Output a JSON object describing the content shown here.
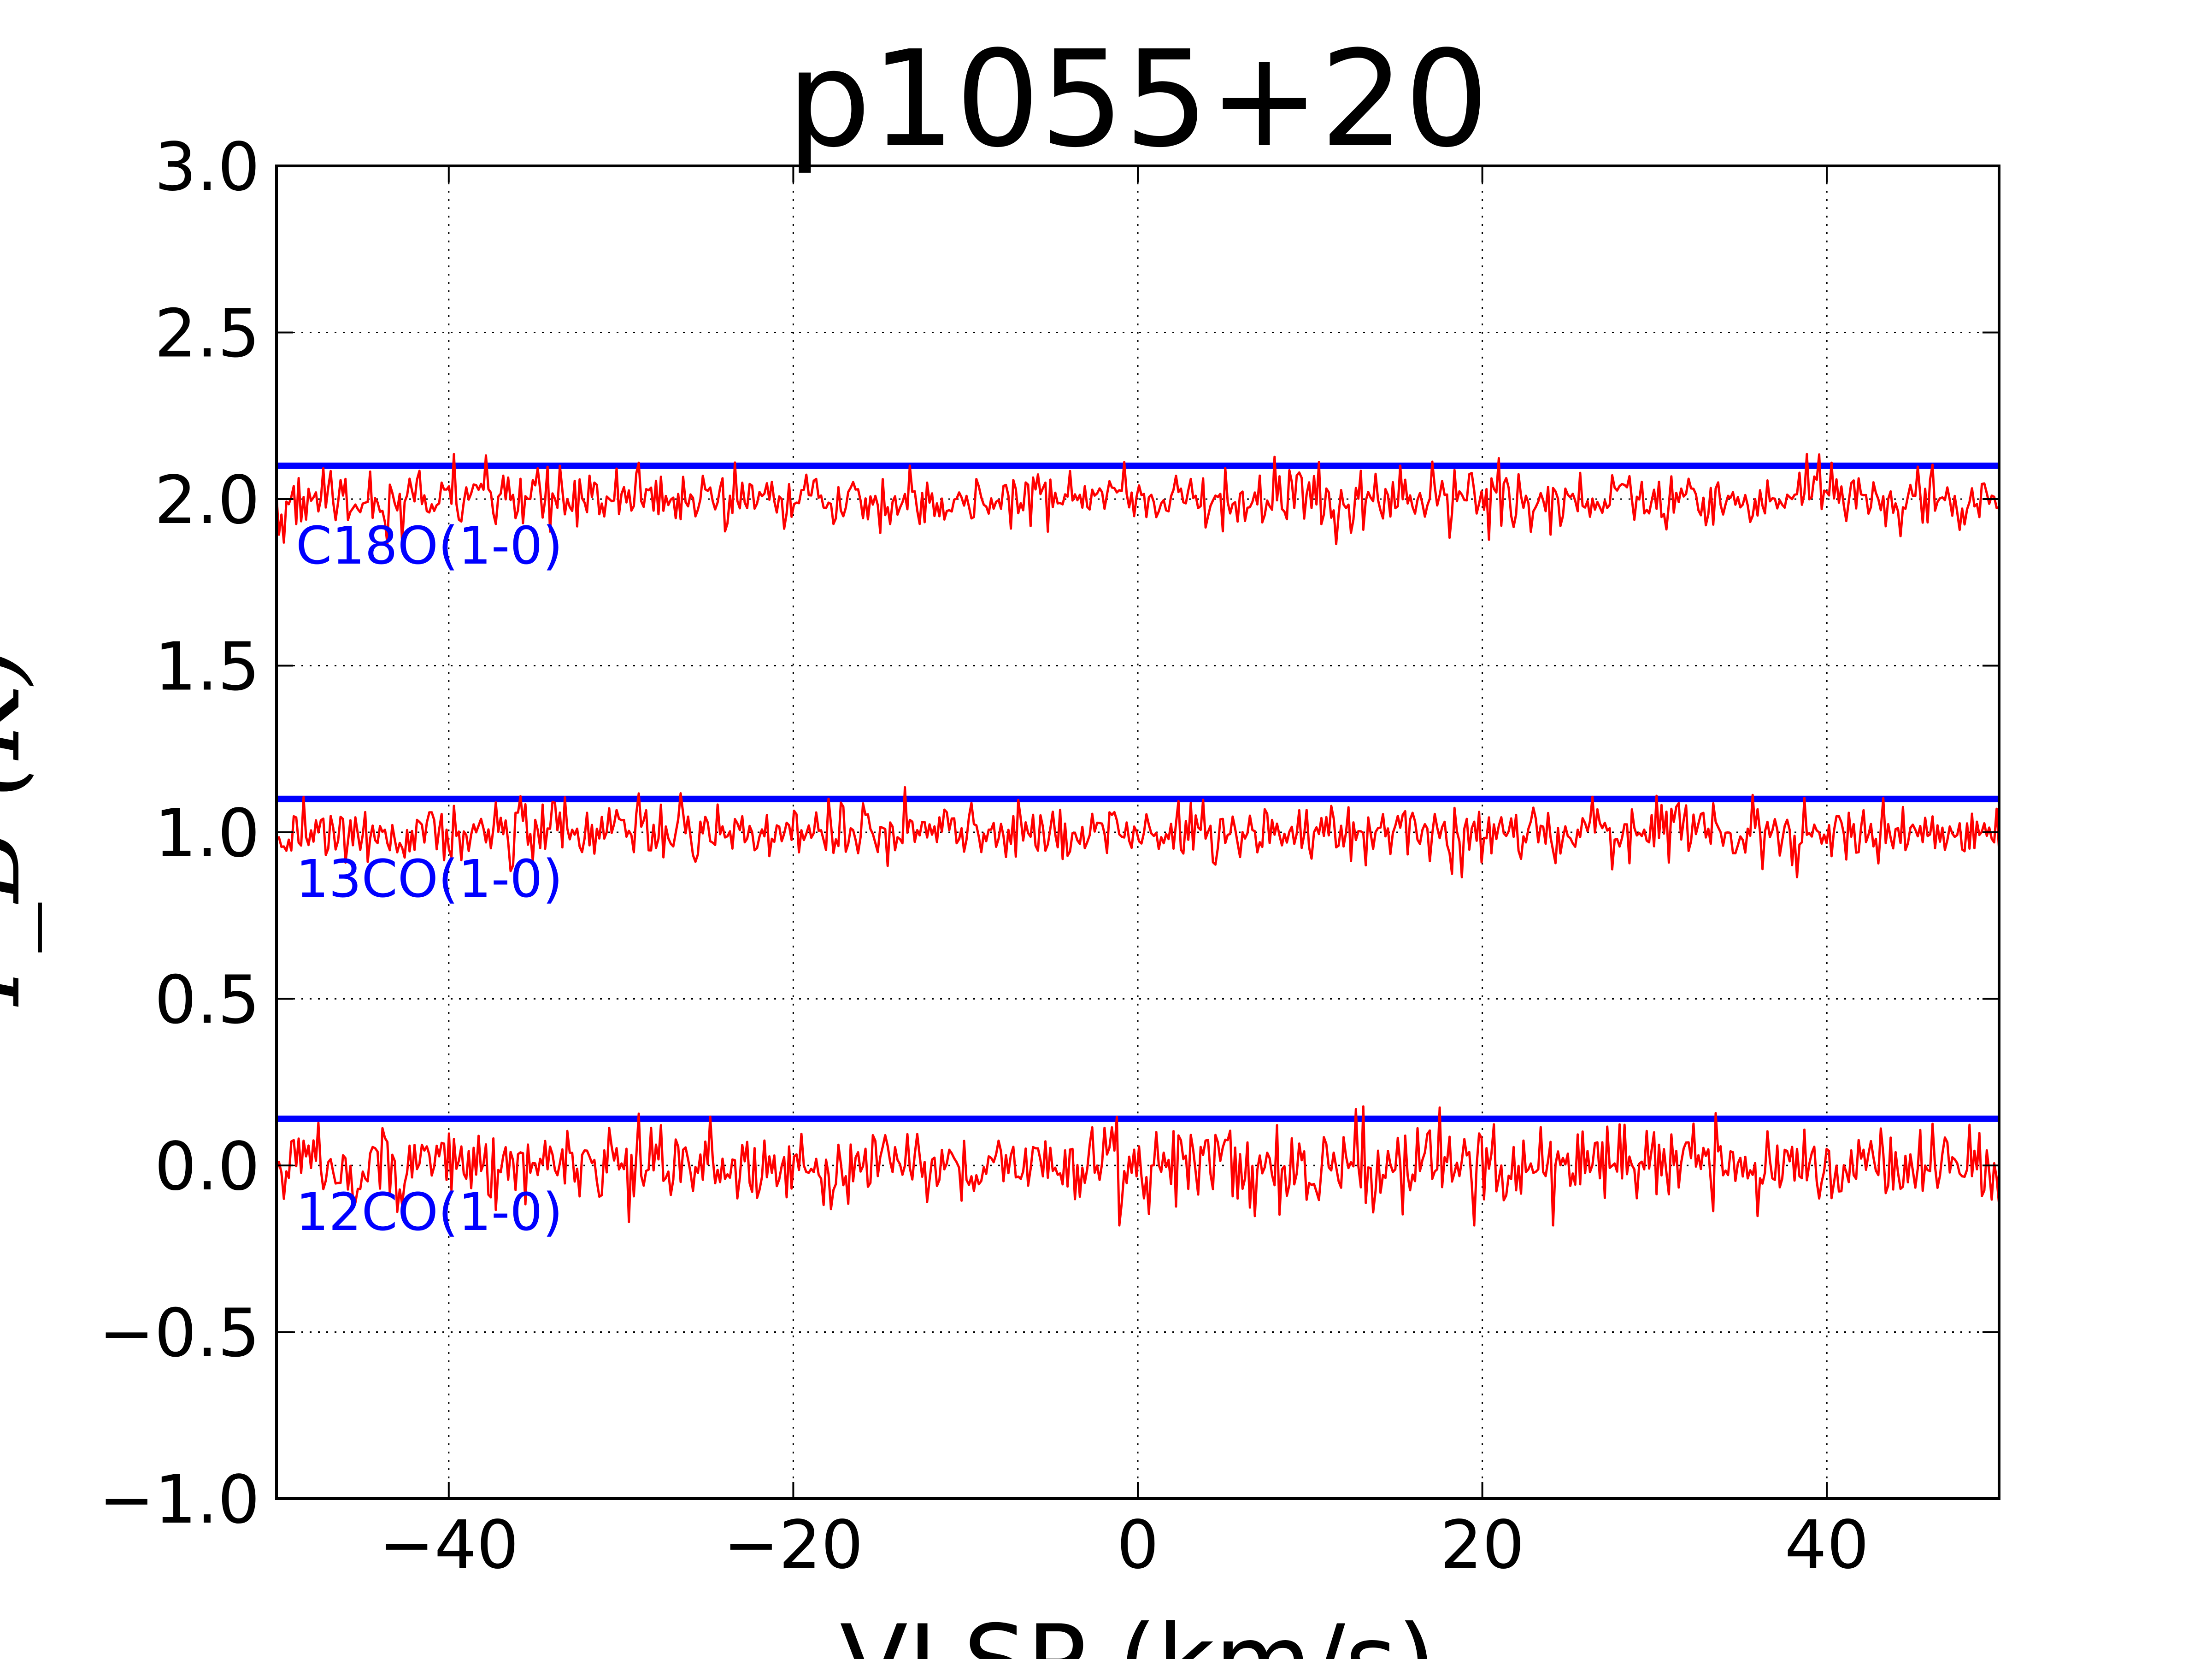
{
  "chart_data": {
    "type": "line",
    "title": "p1055+20",
    "xlabel": "VLSP (km/s)",
    "ylabel": "T_B (K)",
    "xlim": [
      -50,
      50
    ],
    "ylim": [
      -1.0,
      3.0
    ],
    "xticks": [
      -40,
      -20,
      0,
      20,
      40
    ],
    "xtick_labels": [
      "−40",
      "−20",
      "0",
      "20",
      "40"
    ],
    "yticks": [
      -1.0,
      -0.5,
      0.0,
      0.5,
      1.0,
      1.5,
      2.0,
      2.5,
      3.0
    ],
    "ytick_labels": [
      "−1.0",
      "−0.5",
      "0.0",
      "0.5",
      "1.0",
      "1.5",
      "2.0",
      "2.5",
      "3.0"
    ],
    "grid": true,
    "spectrum_color": "#ff0000",
    "reference_line_color": "#0000ff",
    "series": [
      {
        "name": "12CO(1-0)",
        "baseline": 0.0,
        "reference_level": 0.14,
        "noise_rms": 0.06,
        "x_range": [
          -50,
          50
        ],
        "n_channels": 700
      },
      {
        "name": "13CO(1-0)",
        "baseline": 1.0,
        "reference_level": 1.1,
        "noise_rms": 0.045,
        "x_range": [
          -50,
          50
        ],
        "n_channels": 700
      },
      {
        "name": "C18O(1-0)",
        "baseline": 2.0,
        "reference_level": 2.1,
        "noise_rms": 0.045,
        "x_range": [
          -50,
          50
        ],
        "n_channels": 700
      }
    ]
  }
}
